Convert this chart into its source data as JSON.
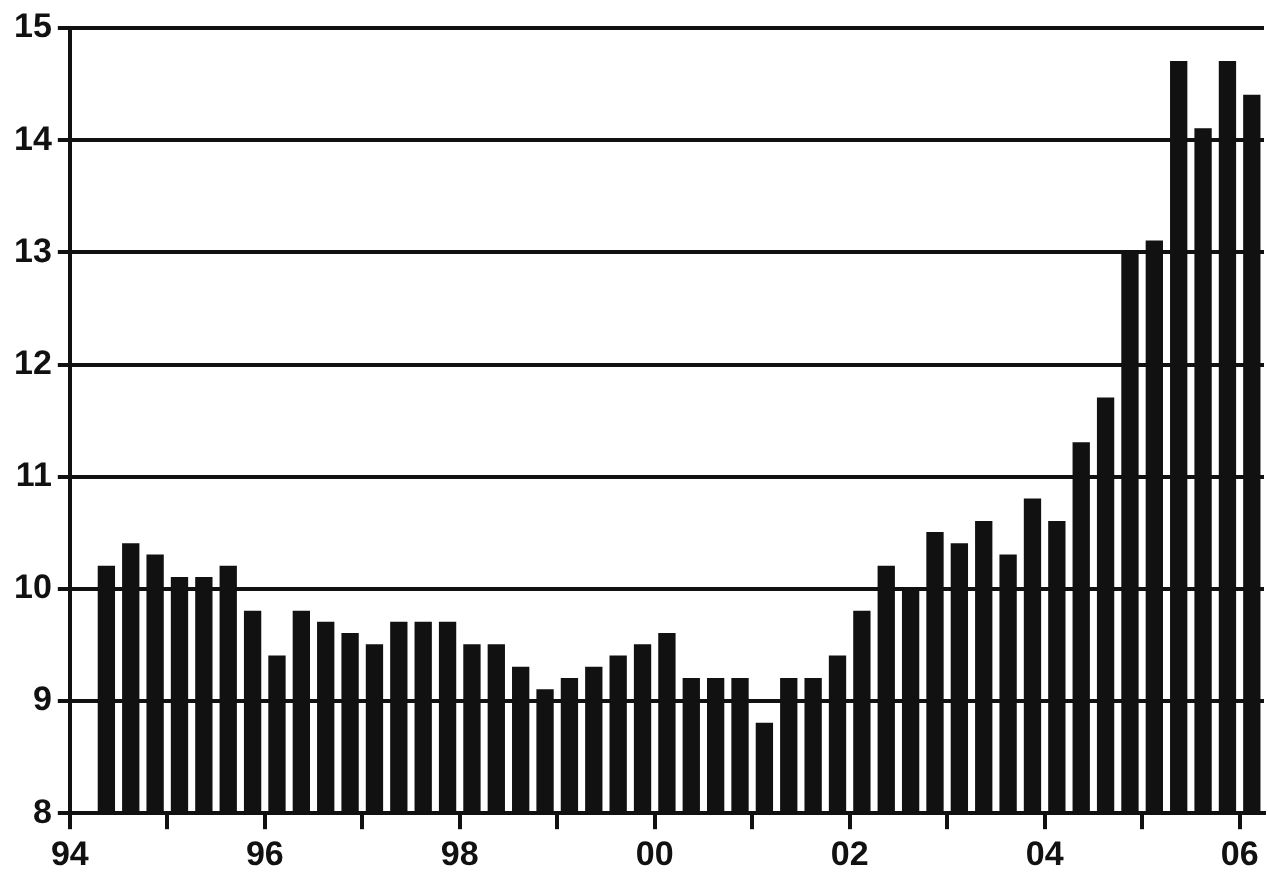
{
  "chart_data": {
    "type": "bar",
    "color": "#111111",
    "x": [
      1994.375,
      1994.625,
      1994.875,
      1995.125,
      1995.375,
      1995.625,
      1995.875,
      1996.125,
      1996.375,
      1996.625,
      1996.875,
      1997.125,
      1997.375,
      1997.625,
      1997.875,
      1998.125,
      1998.375,
      1998.625,
      1998.875,
      1999.125,
      1999.375,
      1999.625,
      1999.875,
      2000.125,
      2000.375,
      2000.625,
      2000.875,
      2001.125,
      2001.375,
      2001.625,
      2001.875,
      2002.125,
      2002.375,
      2002.625,
      2002.875,
      2003.125,
      2003.375,
      2003.625,
      2003.875,
      2004.125,
      2004.375,
      2004.625,
      2004.875,
      2005.125,
      2005.375,
      2005.625,
      2005.875,
      2006.125
    ],
    "values": [
      10.2,
      10.4,
      10.3,
      10.1,
      10.1,
      10.2,
      9.8,
      9.4,
      9.8,
      9.7,
      9.6,
      9.5,
      9.7,
      9.7,
      9.7,
      9.5,
      9.5,
      9.3,
      9.1,
      9.2,
      9.3,
      9.4,
      9.5,
      9.6,
      9.2,
      9.2,
      9.2,
      8.8,
      9.2,
      9.2,
      9.4,
      9.8,
      10.2,
      10.0,
      10.5,
      10.4,
      10.6,
      10.3,
      10.8,
      10.6,
      11.3,
      11.7,
      13.0,
      13.1,
      14.7,
      14.1,
      14.7,
      14.4
    ],
    "xlim": [
      1994,
      2006.25
    ],
    "xticks": [
      {
        "value": 1994,
        "label": "94"
      },
      {
        "value": 1995,
        "label": null
      },
      {
        "value": 1996,
        "label": "96"
      },
      {
        "value": 1997,
        "label": null
      },
      {
        "value": 1998,
        "label": "98"
      },
      {
        "value": 1999,
        "label": null
      },
      {
        "value": 2000,
        "label": "00"
      },
      {
        "value": 2001,
        "label": null
      },
      {
        "value": 2002,
        "label": "02"
      },
      {
        "value": 2003,
        "label": null
      },
      {
        "value": 2004,
        "label": "04"
      },
      {
        "value": 2005,
        "label": null
      },
      {
        "value": 2006,
        "label": "06"
      }
    ],
    "ylim": [
      8,
      15
    ],
    "yticks": [
      8,
      9,
      10,
      11,
      12,
      13,
      14,
      15
    ],
    "grid": "y",
    "legend": false
  }
}
